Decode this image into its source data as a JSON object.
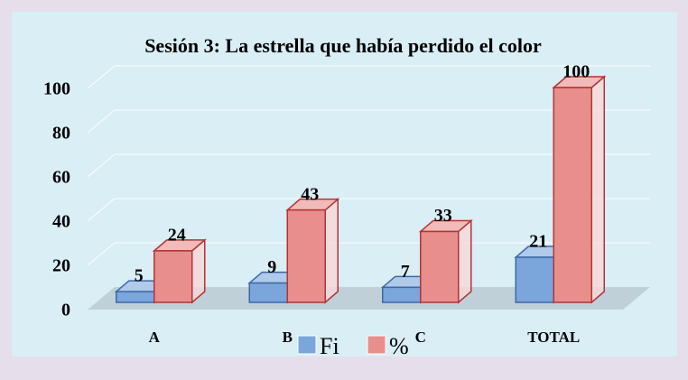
{
  "chart_data": {
    "type": "bar3d",
    "title": "Sesión 3: La estrella que había perdido el color",
    "categories": [
      "A",
      "B",
      "C",
      "TOTAL"
    ],
    "series": [
      {
        "name": "Fi",
        "color": "#7aa6dc",
        "values": [
          5,
          9,
          7,
          21
        ]
      },
      {
        "name": "%",
        "color": "#e88e8c",
        "values": [
          24,
          43,
          33,
          100
        ]
      }
    ],
    "ylim": [
      0,
      100
    ],
    "yticks": [
      0,
      20,
      40,
      60,
      80,
      100
    ],
    "grid": true,
    "legend": "bottom"
  }
}
